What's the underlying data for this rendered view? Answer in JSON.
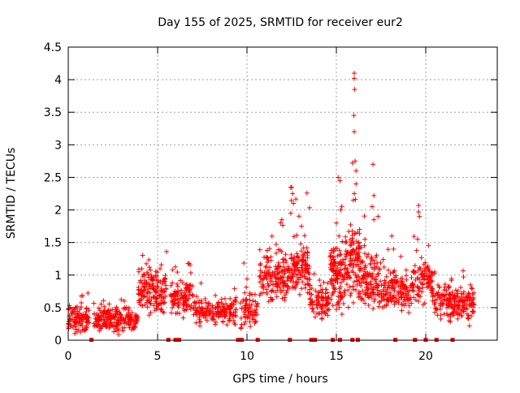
{
  "chart_data": {
    "type": "scatter",
    "title": "Day 155 of 2025, SRMTID for receiver eur2",
    "xlabel": "GPS time / hours",
    "ylabel": "SRMTID / TECUs",
    "xlim": [
      0,
      24
    ],
    "ylim": [
      0,
      4.5
    ],
    "grid": true,
    "x_ticks": [
      0,
      5,
      10,
      15,
      20
    ],
    "y_ticks": [
      0,
      0.5,
      1,
      1.5,
      2,
      2.5,
      3,
      3.5,
      4,
      4.5
    ],
    "x_tick_labels": [
      "0",
      "5",
      "10",
      "15",
      "20"
    ],
    "y_tick_labels": [
      "0",
      "0.5",
      "1",
      "1.5",
      "2",
      "2.5",
      "3",
      "3.5",
      "4",
      "4.5"
    ],
    "marker": "plus",
    "series_color": "#ff0000",
    "zero_marks_hours": [
      1.3,
      5.6,
      6.0,
      6.2,
      9.5,
      9.6,
      9.7,
      10.6,
      12.4,
      13.6,
      13.7,
      13.8,
      14.8,
      15.2,
      15.9,
      16.2,
      18.3,
      19.4,
      20.0,
      20.6,
      21.5
    ],
    "series": [
      {
        "name": "SRMTID",
        "segments": [
          {
            "x0": 0.0,
            "x1": 1.2,
            "base": 0.3,
            "spread": 0.2,
            "peak": 0.8,
            "n": 110
          },
          {
            "x0": 1.4,
            "x1": 3.4,
            "base": 0.32,
            "spread": 0.18,
            "peak": 0.7,
            "n": 170
          },
          {
            "x0": 3.4,
            "x1": 3.9,
            "base": 0.3,
            "spread": 0.15,
            "peak": 0.5,
            "n": 40
          },
          {
            "x0": 3.9,
            "x1": 5.5,
            "base": 0.75,
            "spread": 0.3,
            "peak": 1.4,
            "n": 160
          },
          {
            "x0": 5.7,
            "x1": 7.0,
            "base": 0.65,
            "spread": 0.25,
            "peak": 1.3,
            "n": 110
          },
          {
            "x0": 7.0,
            "x1": 9.4,
            "base": 0.45,
            "spread": 0.2,
            "peak": 0.95,
            "n": 170
          },
          {
            "x0": 9.6,
            "x1": 10.6,
            "base": 0.45,
            "spread": 0.25,
            "peak": 1.25,
            "n": 70
          },
          {
            "x0": 10.7,
            "x1": 12.3,
            "base": 0.95,
            "spread": 0.35,
            "peak": 1.85,
            "n": 150
          },
          {
            "x0": 12.3,
            "x1": 13.5,
            "base": 1.05,
            "spread": 0.35,
            "peak": 2.35,
            "n": 130
          },
          {
            "x0": 13.5,
            "x1": 14.6,
            "base": 0.6,
            "spread": 0.3,
            "peak": 1.2,
            "n": 90
          },
          {
            "x0": 14.6,
            "x1": 15.5,
            "base": 1.0,
            "spread": 0.45,
            "peak": 2.5,
            "n": 120
          },
          {
            "x0": 15.5,
            "x1": 16.3,
            "base": 1.2,
            "spread": 0.55,
            "peak": 2.8,
            "n": 110
          },
          {
            "x0": 16.3,
            "x1": 17.5,
            "base": 0.9,
            "spread": 0.45,
            "peak": 2.3,
            "n": 120
          },
          {
            "x0": 17.5,
            "x1": 19.2,
            "base": 0.75,
            "spread": 0.3,
            "peak": 1.4,
            "n": 140
          },
          {
            "x0": 19.2,
            "x1": 20.5,
            "base": 0.85,
            "spread": 0.3,
            "peak": 1.6,
            "n": 100
          },
          {
            "x0": 20.5,
            "x1": 21.5,
            "base": 0.6,
            "spread": 0.25,
            "peak": 1.1,
            "n": 80
          },
          {
            "x0": 21.5,
            "x1": 22.7,
            "base": 0.55,
            "spread": 0.25,
            "peak": 1.1,
            "n": 110
          }
        ],
        "highlights": [
          {
            "x": 16.0,
            "y": 4.1
          },
          {
            "x": 16.0,
            "y": 4.02
          },
          {
            "x": 16.02,
            "y": 3.85
          },
          {
            "x": 15.98,
            "y": 3.45
          },
          {
            "x": 16.0,
            "y": 3.2
          },
          {
            "x": 16.05,
            "y": 2.75
          },
          {
            "x": 15.9,
            "y": 2.72
          },
          {
            "x": 16.1,
            "y": 2.6
          },
          {
            "x": 16.1,
            "y": 2.4
          },
          {
            "x": 16.0,
            "y": 2.25
          },
          {
            "x": 15.95,
            "y": 2.15
          },
          {
            "x": 17.05,
            "y": 2.7
          },
          {
            "x": 17.1,
            "y": 2.22
          },
          {
            "x": 17.0,
            "y": 2.05
          },
          {
            "x": 15.1,
            "y": 2.5
          },
          {
            "x": 15.2,
            "y": 2.45
          },
          {
            "x": 15.25,
            "y": 2.0
          },
          {
            "x": 15.0,
            "y": 1.8
          },
          {
            "x": 12.5,
            "y": 2.35
          },
          {
            "x": 12.55,
            "y": 2.25
          },
          {
            "x": 12.6,
            "y": 2.1
          },
          {
            "x": 12.45,
            "y": 1.95
          },
          {
            "x": 11.95,
            "y": 1.85
          },
          {
            "x": 13.05,
            "y": 1.75
          },
          {
            "x": 19.6,
            "y": 2.07
          },
          {
            "x": 19.6,
            "y": 1.97
          },
          {
            "x": 19.65,
            "y": 1.9
          },
          {
            "x": 19.55,
            "y": 1.55
          },
          {
            "x": 16.6,
            "y": 1.55
          },
          {
            "x": 17.1,
            "y": 1.85
          },
          {
            "x": 18.1,
            "y": 1.6
          },
          {
            "x": 18.2,
            "y": 1.4
          },
          {
            "x": 16.3,
            "y": 1.7
          }
        ]
      }
    ]
  }
}
